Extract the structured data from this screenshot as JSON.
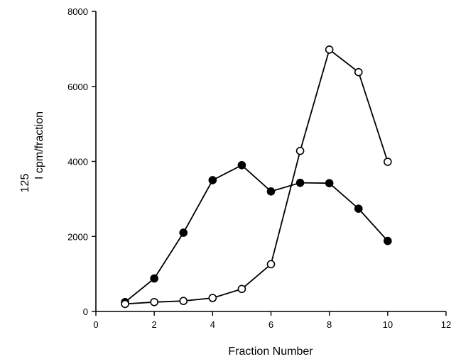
{
  "chart_data": {
    "type": "line",
    "xlabel": "Fraction Number",
    "ylabel_superscript": "125",
    "ylabel": "I cpm/fraction",
    "xlim": [
      0,
      12
    ],
    "ylim": [
      0,
      8000
    ],
    "xticks": [
      0,
      2,
      4,
      6,
      8,
      10,
      12
    ],
    "yticks": [
      0,
      2000,
      4000,
      6000,
      8000
    ],
    "grid": false,
    "series": [
      {
        "marker": "filled-circle",
        "color": "#000000",
        "x": [
          1,
          2,
          3,
          4,
          5,
          6,
          7,
          8,
          9,
          10
        ],
        "y": [
          250,
          880,
          2100,
          3500,
          3900,
          3200,
          3430,
          3420,
          2740,
          1880
        ]
      },
      {
        "marker": "open-circle",
        "color": "#000000",
        "x": [
          1,
          2,
          3,
          4,
          5,
          6,
          7,
          8,
          9,
          10
        ],
        "y": [
          200,
          250,
          280,
          360,
          600,
          1260,
          4280,
          6980,
          6380,
          3990
        ]
      }
    ]
  }
}
